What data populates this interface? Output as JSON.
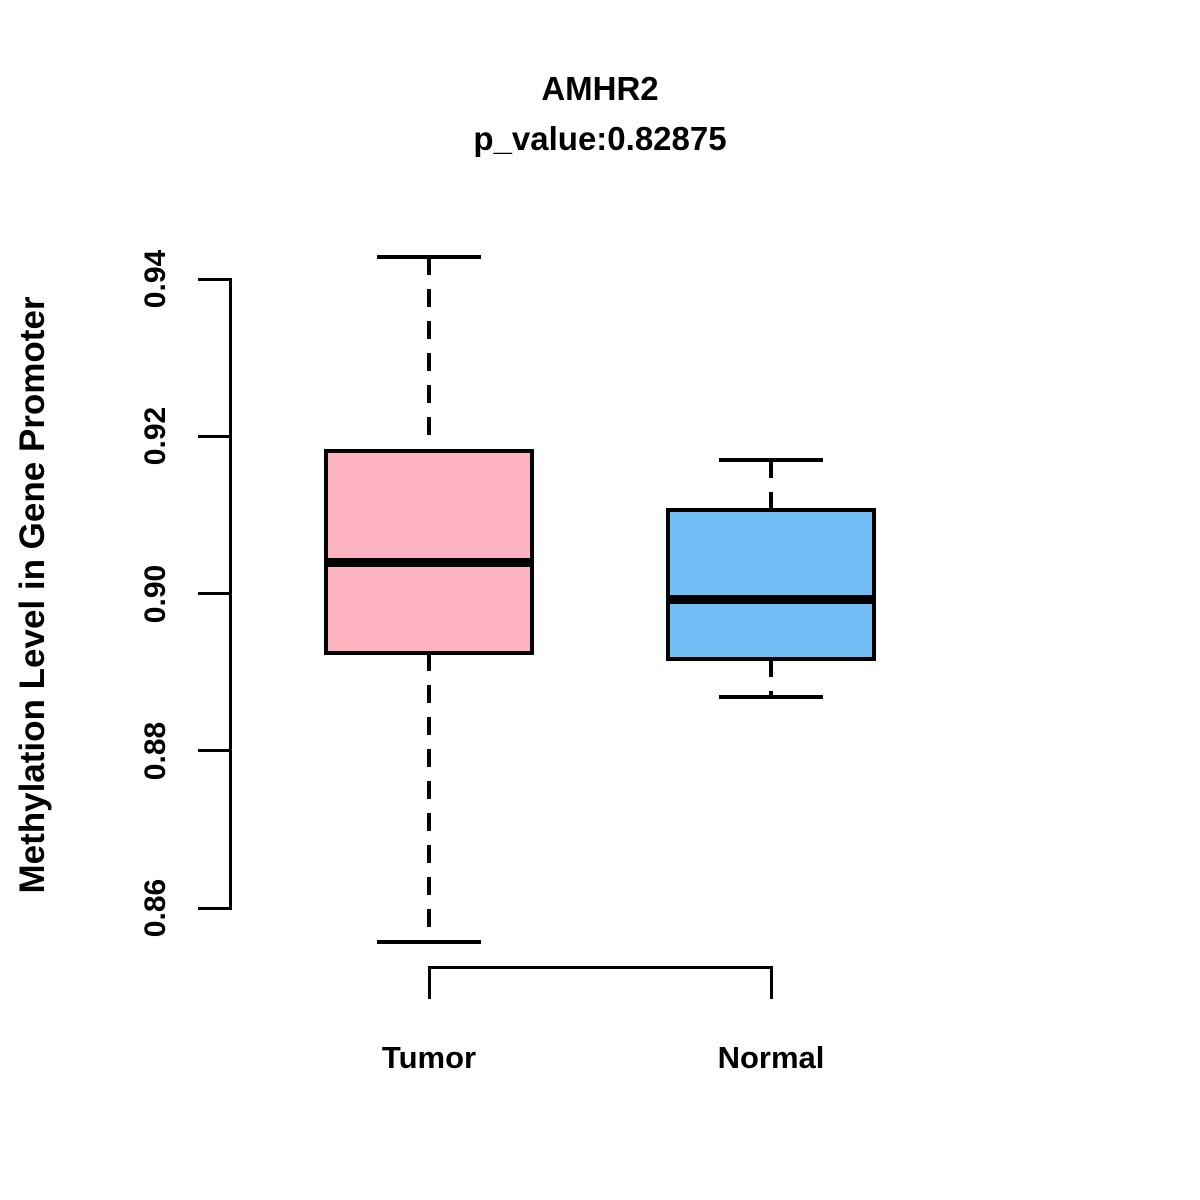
{
  "header": {
    "title": "AMHR2",
    "subtitle": "p_value:0.82875"
  },
  "y_axis": {
    "label": "Methylation Level in Gene Promoter",
    "tick_labels": [
      "0.86",
      "0.88",
      "0.90",
      "0.92",
      "0.94"
    ]
  },
  "x_axis": {
    "categories": [
      "Tumor",
      "Normal"
    ]
  },
  "colors": {
    "tumor_fill": "#FFB3C1",
    "normal_fill": "#73BDF6",
    "stroke": "#000000",
    "background": "#FFFFFF"
  },
  "chart_data": {
    "type": "boxplot",
    "title": "AMHR2",
    "subtitle": "p_value:0.82875",
    "xlabel": "",
    "ylabel": "Methylation Level in Gene Promoter",
    "categories": [
      "Tumor",
      "Normal"
    ],
    "yticks": [
      0.86,
      0.88,
      0.9,
      0.92,
      0.94
    ],
    "ylim": [
      0.85,
      0.945
    ],
    "grid": false,
    "legend": false,
    "series": [
      {
        "name": "Tumor",
        "fill_color": "#FFB3C1",
        "lower_whisker": 0.8557,
        "q1": 0.8924,
        "median": 0.904,
        "q3": 0.9181,
        "upper_whisker": 0.9428
      },
      {
        "name": "Normal",
        "fill_color": "#73BDF6",
        "lower_whisker": 0.8868,
        "q1": 0.8917,
        "median": 0.8993,
        "q3": 0.9106,
        "upper_whisker": 0.917
      }
    ]
  }
}
